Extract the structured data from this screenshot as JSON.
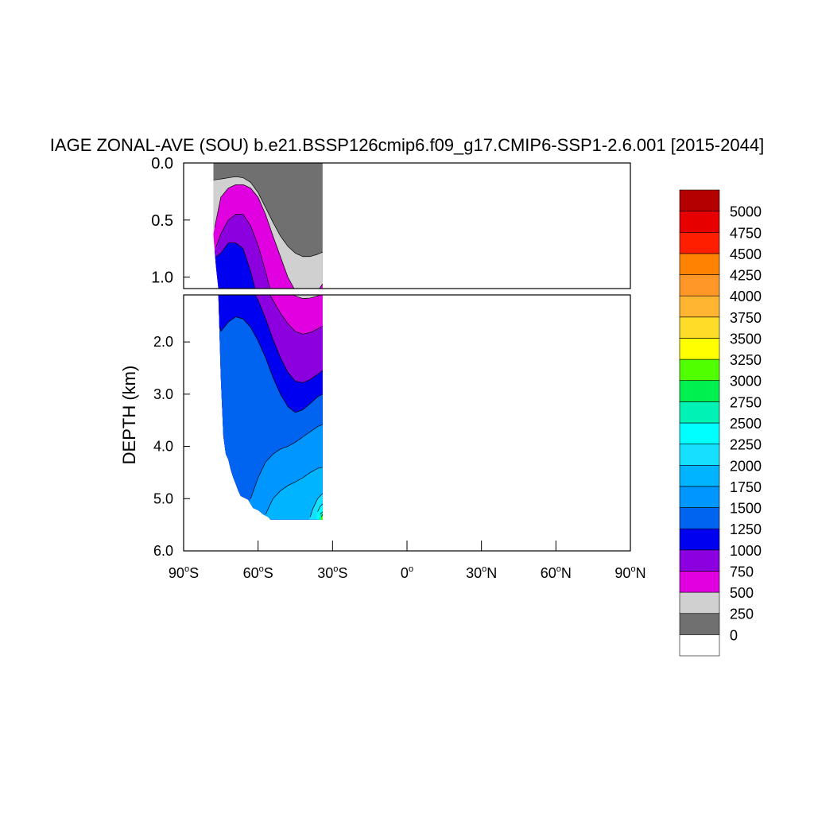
{
  "chart_data": {
    "type": "heatmap",
    "subtype": "filled-contour depth-latitude section",
    "title": "IAGE ZONAL-AVE (SOU) b.e21.BSSP126cmip6.f09_g17.CMIP6-SSP1-2.6.001 [2015-2044]",
    "ylabel": "DEPTH (km)",
    "xlabel": "",
    "x_ticks": [
      {
        "value": -90,
        "label": "90",
        "suffix": "S"
      },
      {
        "value": -60,
        "label": "60",
        "suffix": "S"
      },
      {
        "value": -30,
        "label": "30",
        "suffix": "S"
      },
      {
        "value": 0,
        "label": "0",
        "suffix": ""
      },
      {
        "value": 30,
        "label": "30",
        "suffix": "N"
      },
      {
        "value": 60,
        "label": "60",
        "suffix": "N"
      },
      {
        "value": 90,
        "label": "90",
        "suffix": "N"
      }
    ],
    "xlim": [
      -90,
      90
    ],
    "y_panel_upper": {
      "ylim": [
        0.0,
        1.1
      ],
      "ticks": [
        "0.0",
        "0.5",
        "1.0"
      ]
    },
    "y_panel_lower": {
      "ylim": [
        1.1,
        6.0
      ],
      "ticks": [
        "2.0",
        "3.0",
        "4.0",
        "5.0",
        "6.0"
      ]
    },
    "data_extent": {
      "lat_min": -78,
      "lat_max": -34,
      "max_depth_km": 5.4
    },
    "contour_levels": [
      0,
      250,
      500,
      750,
      1000,
      1250,
      1500,
      1750,
      2000,
      2250,
      2500,
      2750,
      3000,
      3250,
      3500,
      3750,
      4000,
      4250,
      4500,
      4750,
      5000
    ],
    "colorbar_labels": [
      "5000",
      "4750",
      "4500",
      "4250",
      "4000",
      "3750",
      "3500",
      "3250",
      "3000",
      "2750",
      "2500",
      "2250",
      "2000",
      "1750",
      "1500",
      "1250",
      "1000",
      "750",
      "500",
      "250",
      "0"
    ],
    "colorbar_colors": [
      "#ffffff",
      "#707070",
      "#d0d0d0",
      "#e000e0",
      "#8c00e0",
      "#0000f0",
      "#0064f0",
      "#0096ff",
      "#00b4ff",
      "#16e0ff",
      "#00ffff",
      "#00f2b4",
      "#00f050",
      "#50ff00",
      "#ffff00",
      "#ffdc28",
      "#ffb432",
      "#ff9628",
      "#ff8200",
      "#ff1e00",
      "#e60000",
      "#b40000"
    ],
    "contour_bands": [
      {
        "level": 250,
        "color": "#d0d0d0",
        "depth_by_lat": [
          [
            -78,
            0.15
          ],
          [
            -75,
            0.14
          ],
          [
            -72,
            0.13
          ],
          [
            -69,
            0.12
          ],
          [
            -66,
            0.13
          ],
          [
            -63,
            0.17
          ],
          [
            -60,
            0.26
          ],
          [
            -57,
            0.39
          ],
          [
            -54,
            0.52
          ],
          [
            -51,
            0.64
          ],
          [
            -48,
            0.73
          ],
          [
            -45,
            0.79
          ],
          [
            -42,
            0.82
          ],
          [
            -39,
            0.82
          ],
          [
            -36,
            0.8
          ],
          [
            -34,
            0.78
          ]
        ]
      },
      {
        "level": 500,
        "color": "#e000e0",
        "depth_by_lat": [
          [
            -78,
            0.62
          ],
          [
            -75,
            0.3
          ],
          [
            -72,
            0.22
          ],
          [
            -69,
            0.19
          ],
          [
            -66,
            0.19
          ],
          [
            -63,
            0.22
          ],
          [
            -60,
            0.3
          ],
          [
            -57,
            0.45
          ],
          [
            -54,
            0.64
          ],
          [
            -51,
            0.82
          ],
          [
            -48,
            1.0
          ],
          [
            -45,
            1.12
          ],
          [
            -42,
            1.17
          ],
          [
            -39,
            1.16
          ],
          [
            -36,
            1.12
          ],
          [
            -34,
            1.06
          ]
        ]
      },
      {
        "level": 750,
        "color": "#8c00e0",
        "depth_by_lat": [
          [
            -78,
            0.8
          ],
          [
            -75,
            0.62
          ],
          [
            -72,
            0.5
          ],
          [
            -69,
            0.45
          ],
          [
            -66,
            0.45
          ],
          [
            -63,
            0.55
          ],
          [
            -60,
            0.72
          ],
          [
            -57,
            0.95
          ],
          [
            -54,
            1.2
          ],
          [
            -51,
            1.45
          ],
          [
            -48,
            1.65
          ],
          [
            -45,
            1.8
          ],
          [
            -42,
            1.85
          ],
          [
            -39,
            1.82
          ],
          [
            -36,
            1.75
          ],
          [
            -34,
            1.7
          ]
        ]
      },
      {
        "level": 1000,
        "color": "#0000f0",
        "depth_by_lat": [
          [
            -78,
            0.84
          ],
          [
            -75,
            0.79
          ],
          [
            -72,
            0.7
          ],
          [
            -69,
            0.7
          ],
          [
            -66,
            0.75
          ],
          [
            -63,
            0.95
          ],
          [
            -60,
            1.2
          ],
          [
            -57,
            1.55
          ],
          [
            -54,
            1.95
          ],
          [
            -51,
            2.3
          ],
          [
            -48,
            2.58
          ],
          [
            -45,
            2.75
          ],
          [
            -42,
            2.78
          ],
          [
            -39,
            2.72
          ],
          [
            -36,
            2.62
          ],
          [
            -34,
            2.55
          ]
        ]
      },
      {
        "level": 1250,
        "color": "#0064f0",
        "depth_by_lat": [
          [
            -78,
            1.2
          ],
          [
            -75,
            1.8
          ],
          [
            -72,
            1.62
          ],
          [
            -69,
            1.52
          ],
          [
            -66,
            1.56
          ],
          [
            -63,
            1.72
          ],
          [
            -60,
            1.98
          ],
          [
            -57,
            2.3
          ],
          [
            -54,
            2.68
          ],
          [
            -51,
            3.0
          ],
          [
            -48,
            3.24
          ],
          [
            -45,
            3.35
          ],
          [
            -42,
            3.3
          ],
          [
            -39,
            3.18
          ],
          [
            -36,
            3.05
          ],
          [
            -34,
            3.0
          ]
        ]
      },
      {
        "level": 1500,
        "color": "#0096ff",
        "depth_by_lat": [
          [
            -78,
            6
          ],
          [
            -75,
            6
          ],
          [
            -72,
            6
          ],
          [
            -69,
            6
          ],
          [
            -66,
            6
          ],
          [
            -63,
            5.0
          ],
          [
            -60,
            4.6
          ],
          [
            -57,
            4.3
          ],
          [
            -54,
            4.15
          ],
          [
            -51,
            4.05
          ],
          [
            -48,
            4.0
          ],
          [
            -45,
            3.92
          ],
          [
            -42,
            3.82
          ],
          [
            -39,
            3.72
          ],
          [
            -36,
            3.62
          ],
          [
            -34,
            3.58
          ]
        ]
      },
      {
        "level": 1750,
        "color": "#00b4ff",
        "depth_by_lat": [
          [
            -78,
            6
          ],
          [
            -66,
            6
          ],
          [
            -60,
            6
          ],
          [
            -57,
            5.3
          ],
          [
            -54,
            5.0
          ],
          [
            -51,
            4.85
          ],
          [
            -48,
            4.75
          ],
          [
            -45,
            4.68
          ],
          [
            -42,
            4.6
          ],
          [
            -39,
            4.5
          ],
          [
            -36,
            4.42
          ],
          [
            -34,
            4.4
          ]
        ]
      },
      {
        "level": 2000,
        "color": "#16e0ff",
        "depth_by_lat": [
          [
            -78,
            6
          ],
          [
            -48,
            6
          ],
          [
            -42,
            6
          ],
          [
            -40,
            5.5
          ],
          [
            -38,
            5.2
          ],
          [
            -36,
            5.0
          ],
          [
            -34,
            4.9
          ]
        ]
      },
      {
        "level": 2250,
        "color": "#00ffff",
        "depth_by_lat": [
          [
            -78,
            6
          ],
          [
            -38,
            6
          ],
          [
            -36,
            5.25
          ],
          [
            -35,
            5.15
          ],
          [
            -34,
            5.1
          ]
        ]
      },
      {
        "level": 2500,
        "color": "#00f2b4",
        "depth_by_lat": [
          [
            -78,
            6
          ],
          [
            -36,
            6
          ],
          [
            -35,
            5.3
          ],
          [
            -34,
            5.25
          ]
        ]
      },
      {
        "level": 2750,
        "color": "#50ff00",
        "depth_by_lat": [
          [
            -78,
            6
          ],
          [
            -35,
            6
          ],
          [
            -34.5,
            5.35
          ],
          [
            -34,
            5.3
          ]
        ]
      }
    ],
    "bottom_profile": [
      [
        -78,
        0.63
      ],
      [
        -77,
        0.9
      ],
      [
        -76,
        1.1
      ],
      [
        -75,
        2.7
      ],
      [
        -74,
        3.8
      ],
      [
        -73,
        4.15
      ],
      [
        -72,
        4.25
      ],
      [
        -71,
        4.45
      ],
      [
        -70,
        4.6
      ],
      [
        -69,
        4.72
      ],
      [
        -68,
        4.85
      ],
      [
        -67,
        4.95
      ],
      [
        -64,
        5.02
      ],
      [
        -62,
        5.18
      ],
      [
        -60,
        5.22
      ],
      [
        -58,
        5.3
      ],
      [
        -56,
        5.35
      ],
      [
        -55,
        5.4
      ],
      [
        -52,
        5.4
      ],
      [
        -48,
        5.4
      ],
      [
        -44,
        5.4
      ],
      [
        -40,
        5.4
      ],
      [
        -36,
        5.4
      ],
      [
        -34,
        5.4
      ]
    ],
    "grid": false,
    "legend_position": "right colorbar"
  }
}
